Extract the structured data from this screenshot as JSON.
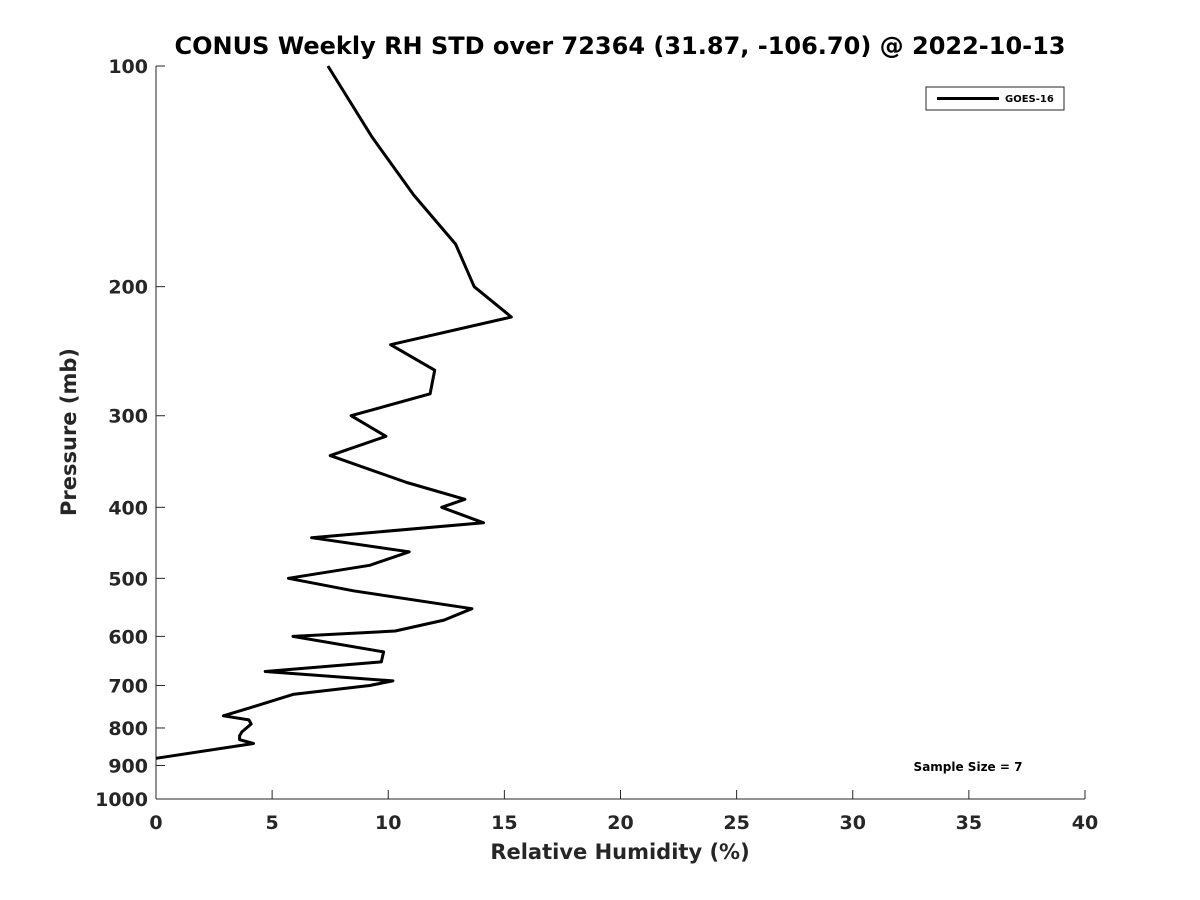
{
  "chart_data": {
    "type": "line",
    "title": "CONUS Weekly RH STD over 72364 (31.87, -106.70) @ 2022-10-13",
    "xlabel": "Relative Humidity (%)",
    "ylabel": "Pressure (mb)",
    "xlim": [
      0,
      40
    ],
    "ylim": [
      100,
      1000
    ],
    "y_scale": "log",
    "y_reversed": true,
    "x_ticks": [
      0,
      5,
      10,
      15,
      20,
      25,
      30,
      35,
      40
    ],
    "y_ticks": [
      100,
      200,
      300,
      400,
      500,
      600,
      700,
      800,
      900,
      1000
    ],
    "grid": false,
    "legend_position": "top-right",
    "series": [
      {
        "name": "GOES-16",
        "color": "#000000",
        "points": [
          [
            7.4,
            100
          ],
          [
            9.3,
            125
          ],
          [
            11.1,
            150
          ],
          [
            12.9,
            175
          ],
          [
            13.7,
            200
          ],
          [
            15.3,
            220
          ],
          [
            10.1,
            240
          ],
          [
            12.0,
            260
          ],
          [
            11.8,
            280
          ],
          [
            8.4,
            300
          ],
          [
            9.9,
            320
          ],
          [
            7.5,
            340
          ],
          [
            10.8,
            370
          ],
          [
            13.3,
            390
          ],
          [
            12.3,
            400
          ],
          [
            14.1,
            420
          ],
          [
            6.7,
            440
          ],
          [
            10.9,
            460
          ],
          [
            9.2,
            480
          ],
          [
            5.7,
            500
          ],
          [
            8.5,
            520
          ],
          [
            13.6,
            550
          ],
          [
            12.4,
            570
          ],
          [
            10.3,
            590
          ],
          [
            5.9,
            600
          ],
          [
            9.8,
            630
          ],
          [
            9.7,
            650
          ],
          [
            4.7,
            670
          ],
          [
            10.2,
            690
          ],
          [
            9.2,
            700
          ],
          [
            5.9,
            720
          ],
          [
            4.1,
            750
          ],
          [
            2.9,
            770
          ],
          [
            4.0,
            780
          ],
          [
            4.1,
            790
          ],
          [
            3.7,
            810
          ],
          [
            3.6,
            820
          ],
          [
            3.6,
            830
          ],
          [
            4.2,
            840
          ],
          [
            0.0,
            880
          ]
        ]
      }
    ],
    "annotations": [
      "Sample Size = 7"
    ]
  }
}
